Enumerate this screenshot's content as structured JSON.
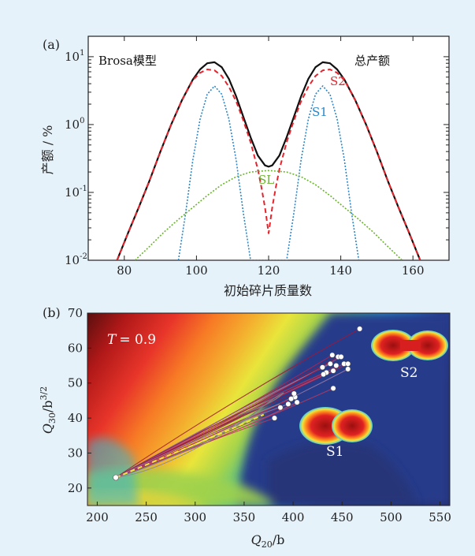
{
  "chart_data": [
    {
      "panel_label": "(a)",
      "type": "line",
      "y_scale": "log",
      "xlim": [
        70,
        170
      ],
      "ylim": [
        0.01,
        20
      ],
      "xlabel": "初始碎片质量数",
      "ylabel": "产额 / %",
      "x_ticks": [
        80,
        100,
        120,
        140,
        160
      ],
      "y_ticks": [
        {
          "value": 0.01,
          "base": "10",
          "exp": "-2"
        },
        {
          "value": 0.1,
          "base": "10",
          "exp": "-1"
        },
        {
          "value": 1,
          "base": "10",
          "exp": "0"
        },
        {
          "value": 10,
          "base": "10",
          "exp": "1"
        }
      ],
      "annotations": {
        "model": "Brosa模型",
        "total": "总产额"
      },
      "series": [
        {
          "name": "总产额",
          "color": "#111111",
          "dash": "solid",
          "x": [
            78,
            81,
            84,
            87,
            90,
            93,
            96,
            99,
            101,
            103,
            105,
            107,
            109,
            111,
            113,
            115,
            117,
            119,
            120,
            121,
            123,
            125,
            127,
            129,
            131,
            133,
            135,
            137,
            139,
            141,
            144,
            147,
            150,
            153,
            156,
            159,
            162
          ],
          "y": [
            0.01,
            0.025,
            0.06,
            0.15,
            0.4,
            1.0,
            2.3,
            4.6,
            6.5,
            8.0,
            8.3,
            7.0,
            4.7,
            2.6,
            1.3,
            0.65,
            0.35,
            0.25,
            0.24,
            0.25,
            0.35,
            0.65,
            1.3,
            2.6,
            4.7,
            7.0,
            8.3,
            8.0,
            6.5,
            4.6,
            2.3,
            1.0,
            0.4,
            0.15,
            0.06,
            0.025,
            0.01
          ]
        },
        {
          "name": "S2",
          "color": "#e8232b",
          "dash": "dashed",
          "x": [
            78,
            81,
            84,
            87,
            90,
            93,
            96,
            99,
            101,
            103,
            105,
            107,
            109,
            111,
            113,
            115,
            117,
            118,
            119,
            120,
            121,
            122,
            123,
            125,
            127,
            129,
            131,
            133,
            135,
            137,
            139,
            141,
            144,
            147,
            150,
            153,
            156,
            159,
            162
          ],
          "y": [
            0.01,
            0.025,
            0.06,
            0.15,
            0.4,
            1.0,
            2.3,
            4.5,
            5.8,
            6.5,
            6.3,
            5.2,
            3.6,
            2.2,
            1.15,
            0.55,
            0.22,
            0.12,
            0.06,
            0.025,
            0.06,
            0.12,
            0.22,
            0.55,
            1.15,
            2.2,
            3.6,
            5.2,
            6.3,
            6.5,
            5.8,
            4.5,
            2.3,
            1.0,
            0.4,
            0.15,
            0.06,
            0.025,
            0.01
          ]
        },
        {
          "name": "S1",
          "color": "#2a86c8",
          "dash": "dotted",
          "x": [
            95,
            97,
            99,
            101,
            103,
            105,
            107,
            109,
            111,
            113,
            115,
            125,
            127,
            129,
            131,
            133,
            135,
            137,
            139,
            141,
            143,
            145
          ],
          "y": [
            0.01,
            0.05,
            0.3,
            1.2,
            2.8,
            3.7,
            2.8,
            1.2,
            0.3,
            0.05,
            0.01,
            0.01,
            0.05,
            0.3,
            1.2,
            2.8,
            3.7,
            2.8,
            1.2,
            0.3,
            0.05,
            0.01
          ]
        },
        {
          "name": "SL",
          "color": "#6ab42d",
          "dash": "dotted",
          "x": [
            83,
            87,
            91,
            95,
            99,
            103,
            107,
            111,
            115,
            120,
            125,
            129,
            133,
            137,
            141,
            145,
            149,
            153,
            157
          ],
          "y": [
            0.01,
            0.016,
            0.026,
            0.04,
            0.06,
            0.09,
            0.13,
            0.17,
            0.2,
            0.21,
            0.2,
            0.17,
            0.13,
            0.09,
            0.06,
            0.04,
            0.026,
            0.016,
            0.01
          ]
        }
      ]
    },
    {
      "panel_label": "(b)",
      "type": "heatmap",
      "xlim": [
        190,
        560
      ],
      "ylim": [
        15,
        70
      ],
      "xlabel_main": "Q",
      "xlabel_sub": "20",
      "xlabel_unit": "/b",
      "ylabel_main": "Q",
      "ylabel_sub": "30",
      "ylabel_unit": "/b",
      "ylabel_sup": "3/2",
      "x_ticks": [
        200,
        250,
        300,
        350,
        400,
        450,
        500,
        550
      ],
      "y_ticks": [
        20,
        30,
        40,
        50,
        60,
        70
      ],
      "temperature_label": "T = 0.9",
      "temperature_var": "T",
      "temperature_value": "= 0.9",
      "shape_labels": [
        "S1",
        "S2"
      ],
      "start_point": [
        219,
        23
      ],
      "endpoints": [
        [
          468,
          65.5
        ],
        [
          440,
          58
        ],
        [
          446,
          57.5
        ],
        [
          449,
          57.5
        ],
        [
          438,
          55.5
        ],
        [
          444,
          55
        ],
        [
          452,
          55.5
        ],
        [
          430,
          54.5
        ],
        [
          456,
          55.5
        ],
        [
          434,
          53
        ],
        [
          441,
          53.5
        ],
        [
          456,
          54
        ],
        [
          431,
          52.5
        ],
        [
          441,
          48.5
        ],
        [
          402,
          46
        ],
        [
          398,
          45.5
        ],
        [
          401,
          47
        ],
        [
          404,
          44.5
        ],
        [
          395,
          44
        ],
        [
          387,
          43
        ],
        [
          381,
          40
        ]
      ]
    }
  ]
}
